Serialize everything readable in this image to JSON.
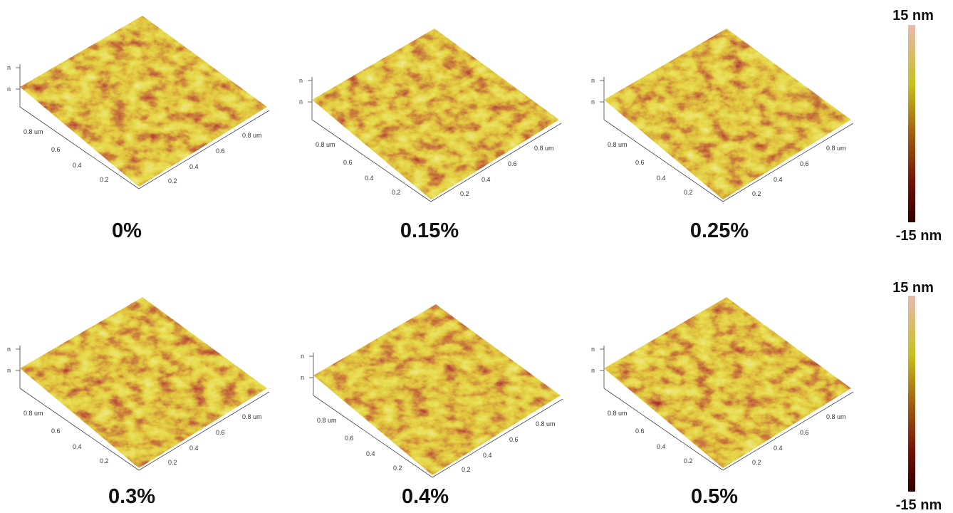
{
  "panels": [
    {
      "caption": "0%"
    },
    {
      "caption": "0.15%"
    },
    {
      "caption": "0.25%"
    },
    {
      "caption": "0.3%"
    },
    {
      "caption": "0.4%"
    },
    {
      "caption": "0.5%"
    }
  ],
  "axis": {
    "x_ticks": [
      "0.2",
      "0.4",
      "0.6",
      "0.8 um"
    ],
    "y_ticks": [
      "0.2",
      "0.4",
      "0.6",
      "0.8 um"
    ],
    "z_ticks": [
      "n",
      "n"
    ]
  },
  "colorbars": [
    {
      "max_label": "15 nm",
      "min_label": "-15 nm"
    },
    {
      "max_label": "15 nm",
      "min_label": "-15 nm"
    }
  ]
}
